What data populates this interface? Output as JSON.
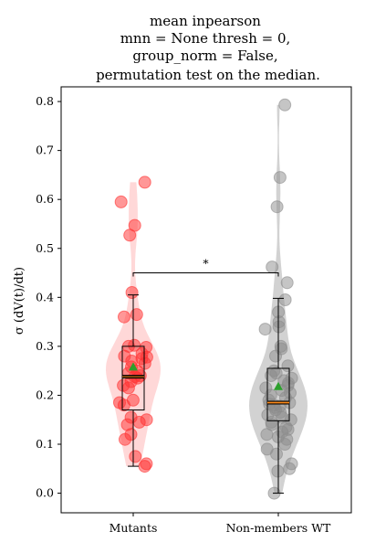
{
  "chart_data": {
    "type": "violin-box-scatter",
    "title_lines": [
      "mean inpearson",
      "mnn = None thresh = 0,",
      "group_norm = False,",
      "permutation test on the median."
    ],
    "ylabel": "σ (dV(t)/dt)",
    "ylim": [
      -0.04,
      0.83
    ],
    "yticks": [
      "0.0",
      "0.1",
      "0.2",
      "0.3",
      "0.4",
      "0.5",
      "0.6",
      "0.7",
      "0.8"
    ],
    "categories": [
      "Mutants",
      "Non-members WT"
    ],
    "colors": {
      "Mutants": "#ff3030",
      "Non-members WT": "#8c8c8c",
      "median_line": "#000000",
      "wt_median_line": "#ff8c1a",
      "mean_marker": "#2ca02c"
    },
    "groups": [
      {
        "name": "Mutants",
        "points": [
          0.635,
          0.595,
          0.547,
          0.527,
          0.41,
          0.365,
          0.36,
          0.3,
          0.302,
          0.298,
          0.285,
          0.28,
          0.278,
          0.275,
          0.27,
          0.265,
          0.258,
          0.25,
          0.245,
          0.24,
          0.238,
          0.235,
          0.228,
          0.22,
          0.215,
          0.19,
          0.185,
          0.18,
          0.155,
          0.15,
          0.145,
          0.14,
          0.12,
          0.11,
          0.075,
          0.06,
          0.055
        ],
        "box": {
          "q1": 0.17,
          "median": 0.238,
          "q3": 0.3,
          "whisker_low": 0.055,
          "whisker_high": 0.405
        },
        "mean": 0.258
      },
      {
        "name": "Non-members WT",
        "points": [
          0.793,
          0.645,
          0.585,
          0.462,
          0.43,
          0.395,
          0.37,
          0.35,
          0.34,
          0.335,
          0.3,
          0.295,
          0.28,
          0.26,
          0.25,
          0.245,
          0.24,
          0.235,
          0.23,
          0.225,
          0.22,
          0.215,
          0.21,
          0.205,
          0.2,
          0.195,
          0.19,
          0.185,
          0.182,
          0.18,
          0.178,
          0.175,
          0.17,
          0.165,
          0.16,
          0.155,
          0.15,
          0.145,
          0.14,
          0.135,
          0.13,
          0.125,
          0.12,
          0.115,
          0.11,
          0.1,
          0.09,
          0.08,
          0.06,
          0.05,
          0.045,
          0.0
        ],
        "box": {
          "q1": 0.148,
          "median": 0.185,
          "q3": 0.255,
          "whisker_low": 0.0,
          "whisker_high": 0.398
        },
        "mean": 0.218
      }
    ],
    "significance": {
      "y": 0.45,
      "label": "*"
    }
  }
}
